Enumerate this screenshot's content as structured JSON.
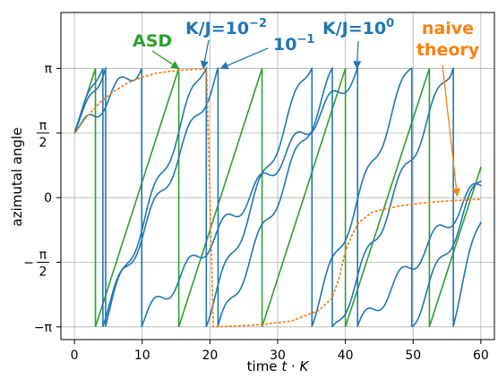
{
  "chart_data": {
    "type": "line",
    "title": "",
    "xlabel": "time t·K",
    "ylabel": "azimutal angle",
    "xlim": [
      -2,
      62
    ],
    "ylim": [
      -3.45,
      4.5
    ],
    "grid": true,
    "x_ticks": [
      0,
      10,
      20,
      30,
      40,
      50,
      60
    ],
    "x_tick_labels": [
      "0",
      "10",
      "20",
      "30",
      "40",
      "50",
      "60"
    ],
    "y_ticks": [
      -3.14159,
      -1.5708,
      0,
      1.5708,
      3.14159
    ],
    "y_tick_labels": [
      "−π",
      "−π/2",
      "0",
      "π/2",
      "π"
    ],
    "colors": {
      "blue": "#1f77b4",
      "green": "#2ca02c",
      "orange": "#ff7f0e"
    },
    "series": [
      {
        "color": "#2ca02c",
        "style": "solid",
        "kind": "sawtooth",
        "period": 12.32,
        "x_start": 0,
        "x_end": 60,
        "y_start": 1.5708,
        "wrap_x": [
          3.1,
          15.4,
          27.7,
          40.0,
          52.4
        ]
      },
      {
        "color": "#1f77b4",
        "style": "solid",
        "kind": "wrapped-oscillating",
        "label_ref": "K/J=10^-2",
        "x_start": 0,
        "x_end": 60,
        "y_start": 1.5708,
        "wrap_x": [
          4.2,
          18.9,
          34.5,
          49.5
        ],
        "y_end": 0.45
      },
      {
        "color": "#1f77b4",
        "style": "solid",
        "kind": "wrapped-oscillating",
        "label_ref": "10^-1",
        "x_start": 0,
        "x_end": 60,
        "y_start": 1.5708,
        "wrap_x": [
          3.6,
          21.4,
          38.6,
          55.5
        ],
        "y_end": -0.55
      },
      {
        "color": "#1f77b4",
        "style": "solid",
        "kind": "wrapped-oscillating",
        "label_ref": "K/J=10^0",
        "x_start": 0,
        "x_end": 60,
        "y_start": 1.5708,
        "wrap_x": [
          9.3,
          42.0
        ],
        "y_end": 0.35
      },
      {
        "color": "#ff7f0e",
        "style": "dotted",
        "kind": "naive",
        "x": [
          0,
          2,
          4,
          6,
          8,
          10,
          12,
          14,
          16,
          18,
          19.5,
          20.5,
          24,
          28,
          32,
          36,
          38,
          39,
          40,
          41,
          42,
          44,
          48,
          52,
          56,
          60
        ],
        "y": [
          1.5708,
          2.0,
          2.35,
          2.6,
          2.8,
          2.93,
          3.02,
          3.07,
          3.1,
          3.12,
          3.13,
          -3.14159,
          -3.12,
          -3.08,
          -3.0,
          -2.75,
          -2.45,
          -2.0,
          -1.3,
          -0.9,
          -0.6,
          -0.35,
          -0.2,
          -0.12,
          -0.07,
          -0.04
        ]
      }
    ],
    "annotations": [
      {
        "text": "ASD",
        "color": "#2ca02c",
        "arrow_to": [
          15.4,
          3.14159
        ]
      },
      {
        "text": "K/J=10",
        "sup": "−2",
        "color": "#1f77b4",
        "arrow_to": [
          19.0,
          3.14159
        ]
      },
      {
        "text": "10",
        "sup": "−1",
        "color": "#1f77b4",
        "arrow_to": [
          21.6,
          3.14159
        ]
      },
      {
        "text": "K/J=10",
        "sup": "0",
        "color": "#1f77b4",
        "arrow_to": [
          41.7,
          3.14159
        ]
      },
      {
        "text": "naive",
        "text2": "theory",
        "color": "#ff7f0e",
        "arrow_to": [
          56.5,
          0.0
        ]
      }
    ]
  }
}
